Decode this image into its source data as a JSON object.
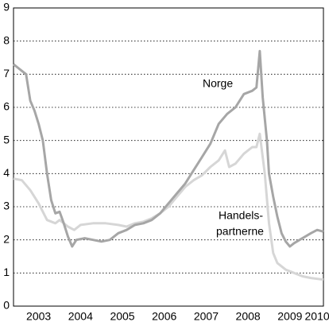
{
  "chart_data": {
    "type": "line",
    "annotations": [
      "Norge",
      "Handels-",
      "partnerne"
    ],
    "xlim": [
      2002.9,
      2010.3
    ],
    "xticks": [
      {
        "value": 2003.5,
        "label": "2003"
      },
      {
        "value": 2004.5,
        "label": "2004"
      },
      {
        "value": 2005.5,
        "label": "2005"
      },
      {
        "value": 2006.5,
        "label": "2006"
      },
      {
        "value": 2007.5,
        "label": "2007"
      },
      {
        "value": 2008.5,
        "label": "2008"
      },
      {
        "value": 2009.5,
        "label": "2009"
      },
      {
        "value": 2010.15,
        "label": "2010"
      }
    ],
    "ylim": [
      0,
      9
    ],
    "yticks": [
      0,
      1,
      2,
      3,
      4,
      5,
      6,
      7,
      8,
      9
    ],
    "grid": true,
    "series": [
      {
        "name": "Norge",
        "color": "#a6a6a6",
        "x": [
          2002.9,
          2003.0,
          2003.1,
          2003.2,
          2003.3,
          2003.4,
          2003.5,
          2003.6,
          2003.7,
          2003.8,
          2003.9,
          2004.0,
          2004.1,
          2004.2,
          2004.3,
          2004.4,
          2004.6,
          2004.8,
          2005.0,
          2005.2,
          2005.4,
          2005.6,
          2005.8,
          2006.0,
          2006.2,
          2006.4,
          2006.6,
          2006.8,
          2007.0,
          2007.2,
          2007.4,
          2007.6,
          2007.8,
          2008.0,
          2008.2,
          2008.4,
          2008.6,
          2008.7,
          2008.78,
          2008.85,
          2008.95,
          2009.0,
          2009.1,
          2009.2,
          2009.3,
          2009.4,
          2009.5,
          2009.6,
          2009.8,
          2010.0,
          2010.15,
          2010.3
        ],
        "values": [
          7.3,
          7.2,
          7.1,
          7.0,
          6.2,
          5.9,
          5.5,
          5.0,
          4.0,
          3.2,
          2.8,
          2.85,
          2.5,
          2.1,
          1.8,
          2.0,
          2.05,
          2.0,
          1.95,
          2.0,
          2.2,
          2.3,
          2.45,
          2.5,
          2.6,
          2.8,
          3.1,
          3.4,
          3.7,
          4.1,
          4.5,
          4.9,
          5.5,
          5.8,
          6.0,
          6.4,
          6.5,
          6.6,
          7.7,
          6.3,
          5.0,
          4.0,
          3.3,
          2.7,
          2.2,
          1.95,
          1.8,
          1.9,
          2.05,
          2.2,
          2.3,
          2.25
        ]
      },
      {
        "name": "Handelspartnerne",
        "color": "#d6d6d6",
        "x": [
          2002.9,
          2003.1,
          2003.3,
          2003.5,
          2003.7,
          2003.9,
          2004.0,
          2004.2,
          2004.35,
          2004.5,
          2004.8,
          2005.1,
          2005.4,
          2005.6,
          2005.8,
          2006.0,
          2006.2,
          2006.4,
          2006.6,
          2006.8,
          2007.0,
          2007.2,
          2007.4,
          2007.6,
          2007.8,
          2007.95,
          2008.05,
          2008.2,
          2008.4,
          2008.6,
          2008.7,
          2008.78,
          2008.9,
          2009.0,
          2009.1,
          2009.2,
          2009.4,
          2009.6,
          2009.8,
          2010.0,
          2010.3
        ],
        "values": [
          3.85,
          3.8,
          3.5,
          3.1,
          2.6,
          2.5,
          2.6,
          2.4,
          2.3,
          2.45,
          2.5,
          2.5,
          2.45,
          2.4,
          2.5,
          2.55,
          2.65,
          2.8,
          3.0,
          3.3,
          3.6,
          3.8,
          3.95,
          4.2,
          4.4,
          4.7,
          4.2,
          4.3,
          4.6,
          4.8,
          4.8,
          5.2,
          4.0,
          2.5,
          1.6,
          1.3,
          1.1,
          1.0,
          0.9,
          0.85,
          0.8
        ]
      }
    ]
  }
}
